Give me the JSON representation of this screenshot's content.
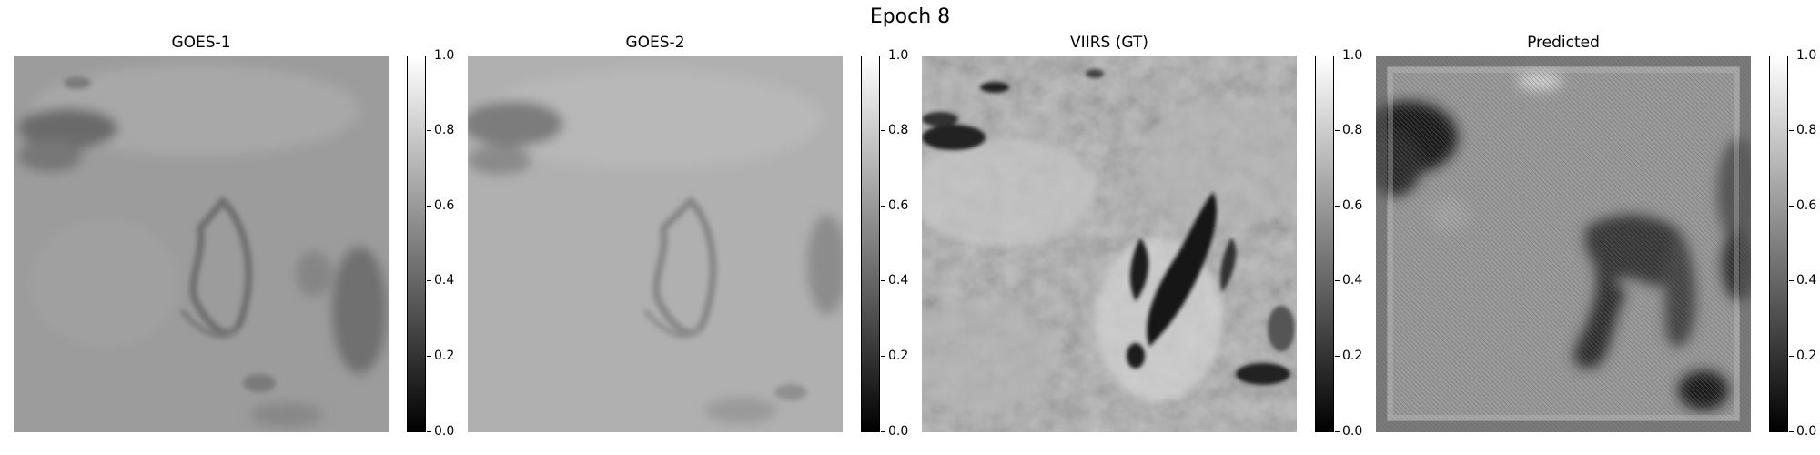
{
  "figure": {
    "title": "Epoch 8"
  },
  "panels": [
    {
      "title": "GOES-1",
      "image_icon": "goes-1-cloud-image"
    },
    {
      "title": "GOES-2",
      "image_icon": "goes-2-cloud-image"
    },
    {
      "title": "VIIRS (GT)",
      "image_icon": "viirs-ground-truth-image"
    },
    {
      "title": "Predicted",
      "image_icon": "predicted-cloud-image"
    }
  ],
  "colorbar": {
    "ticks": [
      "0.0",
      "0.2",
      "0.4",
      "0.6",
      "0.8",
      "1.0"
    ],
    "range": [
      0,
      1
    ],
    "colormap": "gray"
  }
}
